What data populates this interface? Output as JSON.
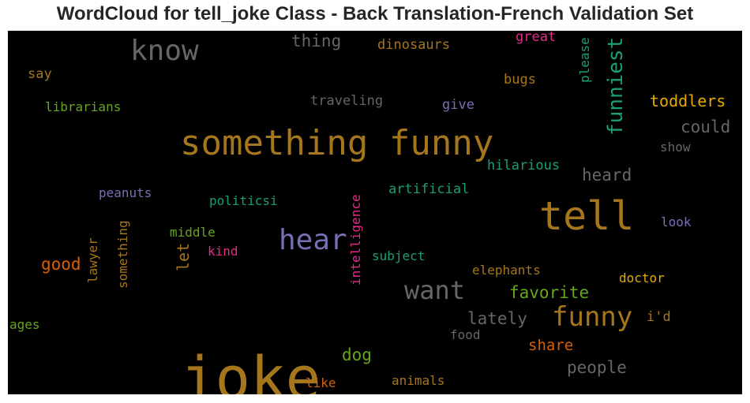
{
  "chart_data": {
    "type": "wordcloud",
    "title": "WordCloud for tell_joke Class - Back Translation-French Validation Set",
    "background": "#000000",
    "colormap": "Dark2",
    "words": [
      {
        "text": "joke",
        "color": "#a6761d",
        "vertical": false
      },
      {
        "text": "something funny",
        "color": "#a6761d",
        "vertical": false
      },
      {
        "text": "tell",
        "color": "#a6761d",
        "vertical": false
      },
      {
        "text": "know",
        "color": "#666666",
        "vertical": false
      },
      {
        "text": "hear",
        "color": "#7570b3",
        "vertical": false
      },
      {
        "text": "want",
        "color": "#666666",
        "vertical": false
      },
      {
        "text": "funny",
        "color": "#a6761d",
        "vertical": false
      },
      {
        "text": "funniest",
        "color": "#1b9e77",
        "vertical": true
      },
      {
        "text": "toddlers",
        "color": "#e6ab02",
        "vertical": false
      },
      {
        "text": "could",
        "color": "#666666",
        "vertical": false
      },
      {
        "text": "heard",
        "color": "#666666",
        "vertical": false
      },
      {
        "text": "favorite",
        "color": "#66a61e",
        "vertical": false
      },
      {
        "text": "lately",
        "color": "#666666",
        "vertical": false
      },
      {
        "text": "share",
        "color": "#d95f02",
        "vertical": false
      },
      {
        "text": "people",
        "color": "#666666",
        "vertical": false
      },
      {
        "text": "dog",
        "color": "#66a61e",
        "vertical": false
      },
      {
        "text": "good",
        "color": "#d95f02",
        "vertical": false
      },
      {
        "text": "thing",
        "color": "#666666",
        "vertical": false
      },
      {
        "text": "dinosaurs",
        "color": "#a6761d",
        "vertical": false
      },
      {
        "text": "great",
        "color": "#e7298a",
        "vertical": false
      },
      {
        "text": "please",
        "color": "#1b9e77",
        "vertical": true
      },
      {
        "text": "bugs",
        "color": "#a6761d",
        "vertical": false
      },
      {
        "text": "say",
        "color": "#a6761d",
        "vertical": false
      },
      {
        "text": "librarians",
        "color": "#66a61e",
        "vertical": false
      },
      {
        "text": "traveling",
        "color": "#666666",
        "vertical": false
      },
      {
        "text": "give",
        "color": "#7570b3",
        "vertical": false
      },
      {
        "text": "show",
        "color": "#666666",
        "vertical": false
      },
      {
        "text": "hilarious",
        "color": "#1b9e77",
        "vertical": false
      },
      {
        "text": "peanuts",
        "color": "#7570b3",
        "vertical": false
      },
      {
        "text": "politicsi",
        "color": "#1b9e77",
        "vertical": false
      },
      {
        "text": "artificial",
        "color": "#1b9e77",
        "vertical": false
      },
      {
        "text": "intelligence",
        "color": "#e7298a",
        "vertical": true
      },
      {
        "text": "middle",
        "color": "#66a61e",
        "vertical": false
      },
      {
        "text": "kind",
        "color": "#e7298a",
        "vertical": false
      },
      {
        "text": "let",
        "color": "#a6761d",
        "vertical": true
      },
      {
        "text": "lawyer",
        "color": "#a6761d",
        "vertical": true
      },
      {
        "text": "something",
        "color": "#a6761d",
        "vertical": true
      },
      {
        "text": "subject",
        "color": "#1b9e77",
        "vertical": false
      },
      {
        "text": "look",
        "color": "#7570b3",
        "vertical": false
      },
      {
        "text": "elephants",
        "color": "#a6761d",
        "vertical": false
      },
      {
        "text": "doctor",
        "color": "#e6ab02",
        "vertical": false
      },
      {
        "text": "i'd",
        "color": "#a6761d",
        "vertical": false
      },
      {
        "text": "ages",
        "color": "#66a61e",
        "vertical": false
      },
      {
        "text": "food",
        "color": "#666666",
        "vertical": false
      },
      {
        "text": "like",
        "color": "#d95f02",
        "vertical": false
      },
      {
        "text": "animals",
        "color": "#a6761d",
        "vertical": false
      }
    ]
  }
}
